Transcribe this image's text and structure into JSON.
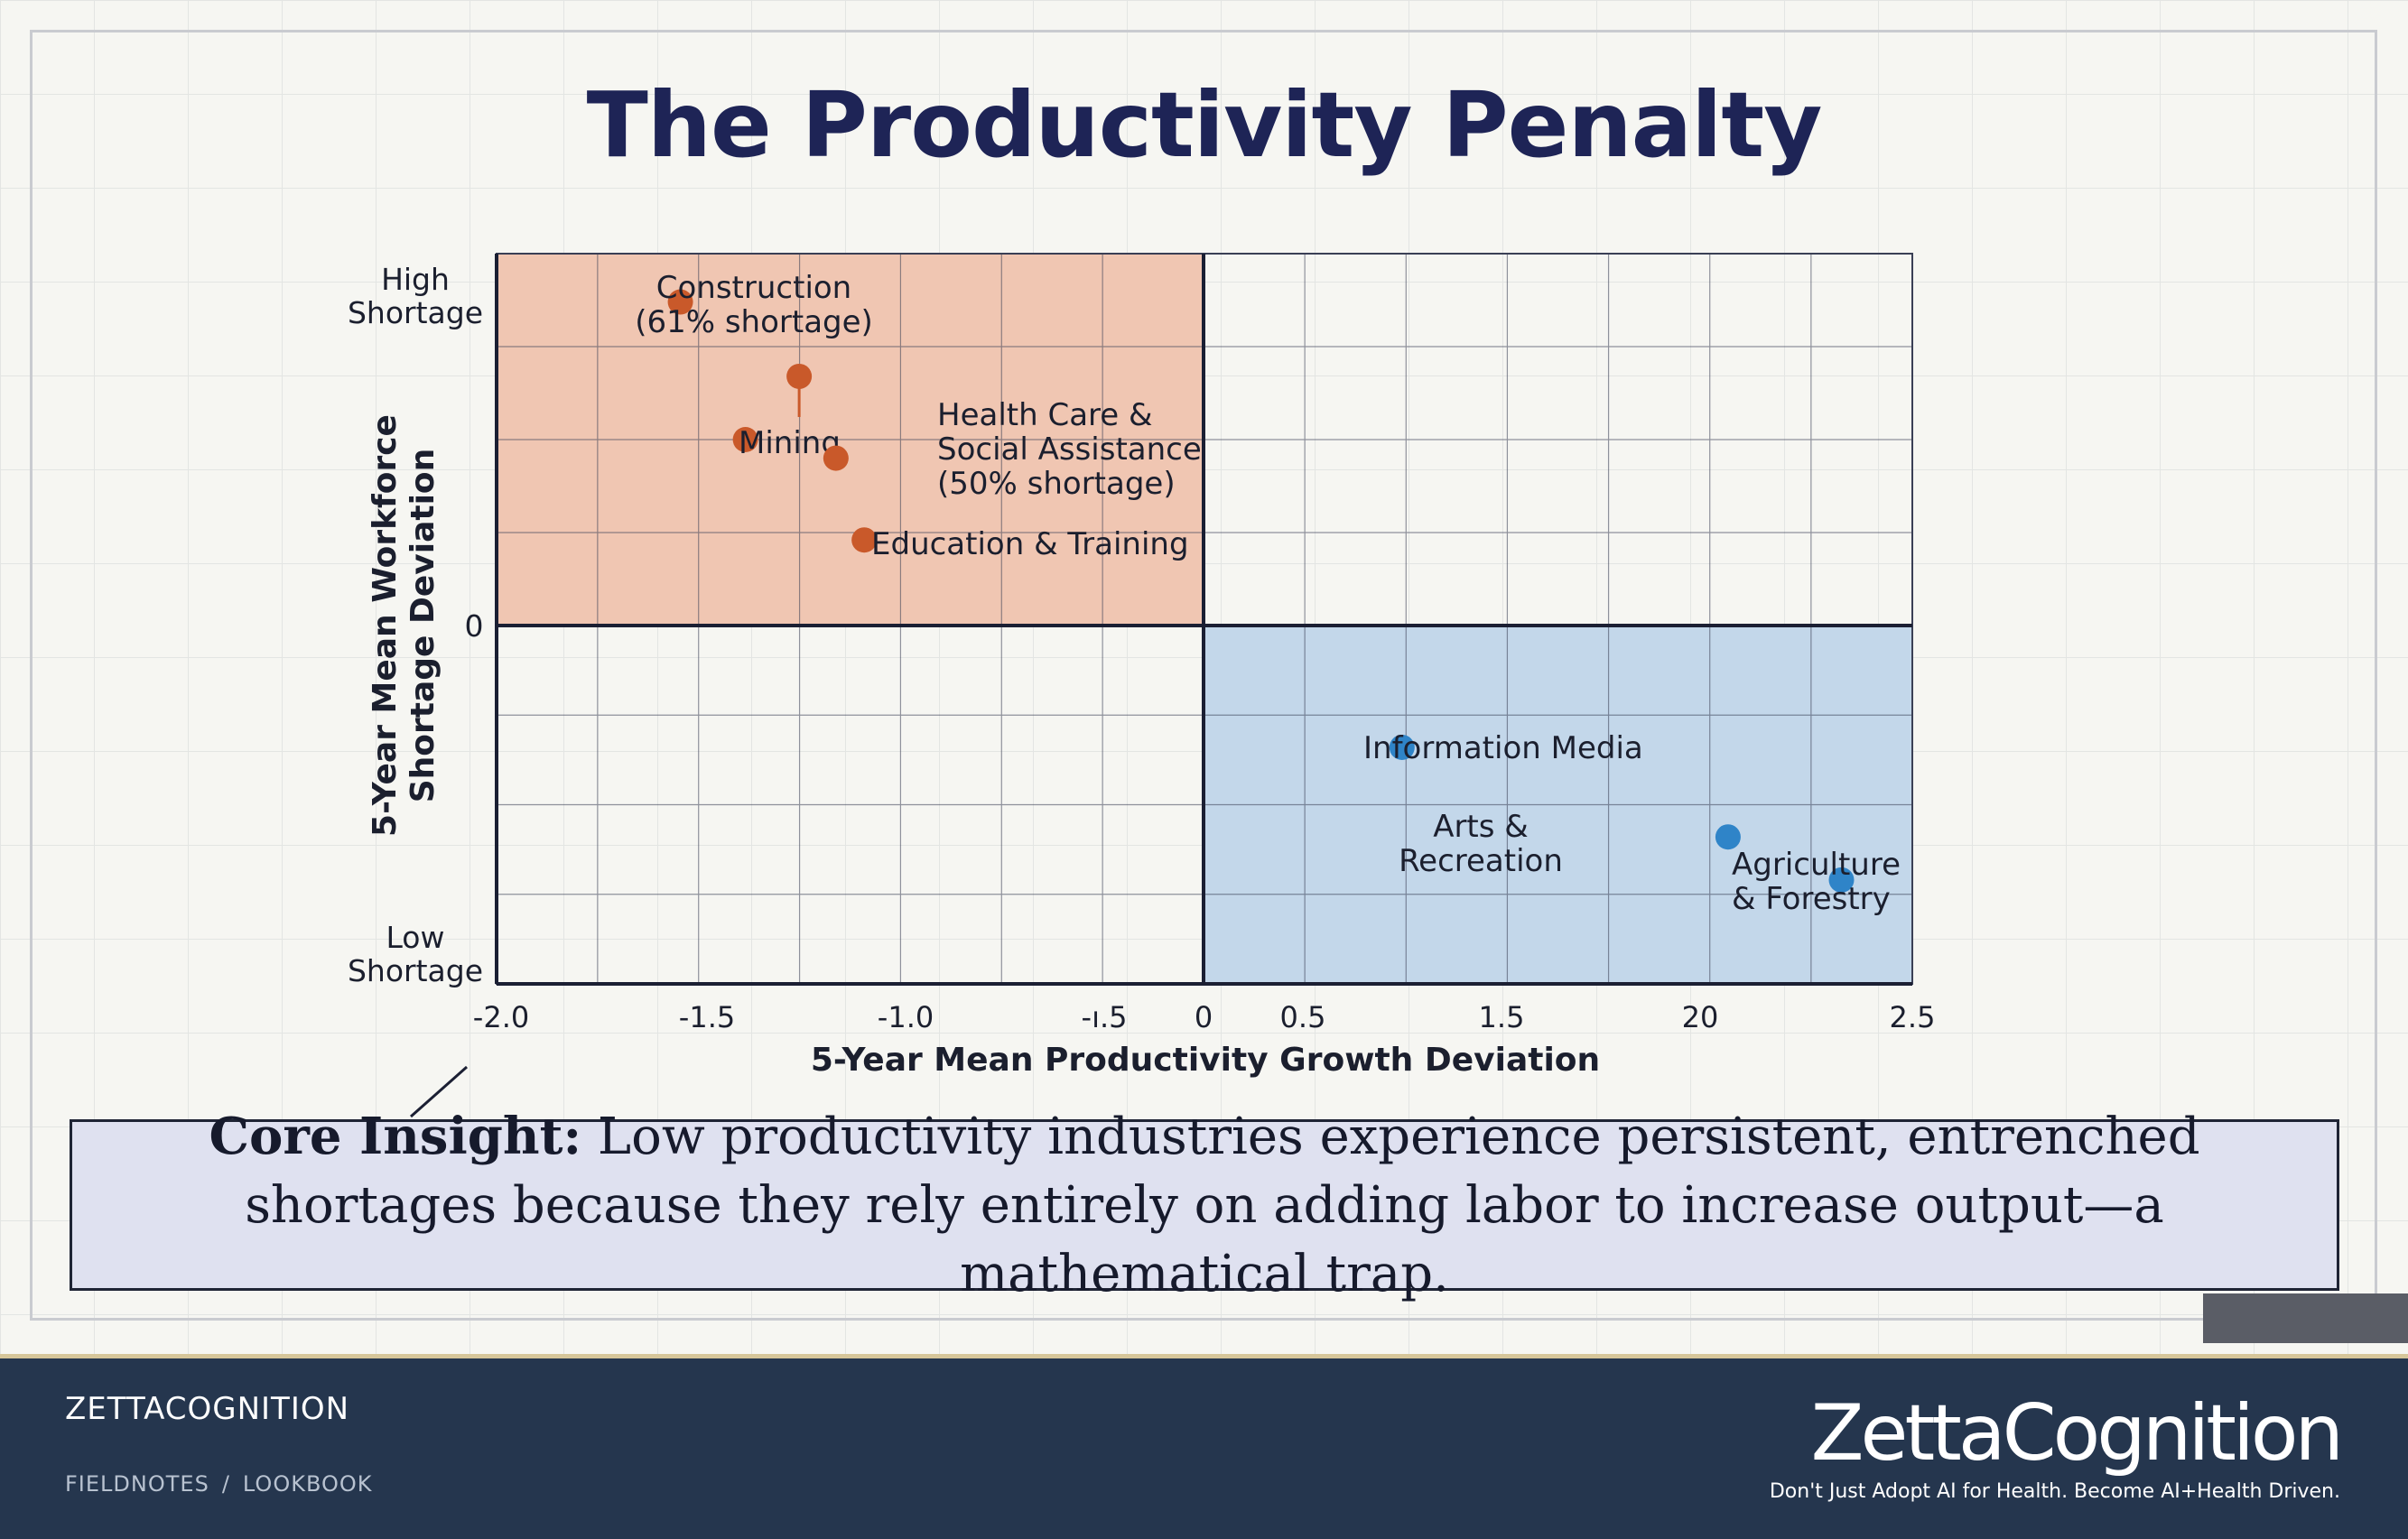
{
  "slide": {
    "title": "The Productivity Penalty",
    "insight_label": "Core Insight:",
    "insight_text": " Low productivity industries experience persistent, entrenched shortages because they rely entirely on adding labor to increase output—a mathematical trap."
  },
  "chart_data": {
    "type": "scatter",
    "title": "The Productivity Penalty",
    "xlabel": "5-Year Mean Productivity Growth Deviation",
    "ylabel": [
      "5-Year Mean Workforce",
      "Shortage Deviation"
    ],
    "x_ticks": [
      "-2.0",
      "-1.5",
      "-1.0",
      "-ı.5",
      "0",
      "0.5",
      "1.5",
      "20",
      "2.5"
    ],
    "y_ticks": {
      "top": [
        "High",
        "Shortage"
      ],
      "middle": "0",
      "bottom": [
        "Low",
        "Shortage"
      ]
    },
    "quadrant_colors": {
      "top_left": "#f0c6b2",
      "bottom_right": "#c3d7ea"
    },
    "series": [
      {
        "color": "#c9592a",
        "points": [
          {
            "x": -1.85,
            "y": 0.87,
            "label": [
              "Construction",
              "(61% shortage)"
            ]
          },
          {
            "x": -1.43,
            "y": 0.67,
            "label": []
          },
          {
            "x": -1.62,
            "y": 0.5,
            "label": [
              "Mining"
            ]
          },
          {
            "x": -1.3,
            "y": 0.45,
            "label": [
              "Health Care &",
              "Social Assistance",
              "(50% shortage)"
            ]
          },
          {
            "x": -1.2,
            "y": 0.23,
            "label": [
              "Education & Training"
            ]
          }
        ]
      },
      {
        "color": "#2f84c8",
        "points": [
          {
            "x": 0.7,
            "y": -0.34,
            "label": [
              "Information Media"
            ]
          },
          {
            "x": 1.85,
            "y": -0.59,
            "label": [
              "Arts &",
              "Recreation"
            ]
          },
          {
            "x": 2.25,
            "y": -0.71,
            "label": [
              "Agriculture",
              "& Forestry"
            ]
          }
        ]
      }
    ]
  },
  "footer": {
    "brand": "ZETTACOGNITION",
    "nav": [
      "FIELDNOTES",
      "LOOKBOOK"
    ],
    "nav_separator": "/",
    "logo": "ZettaCognition",
    "tagline": "Don't Just Adopt AI for Health. Become AI+Health Driven."
  }
}
